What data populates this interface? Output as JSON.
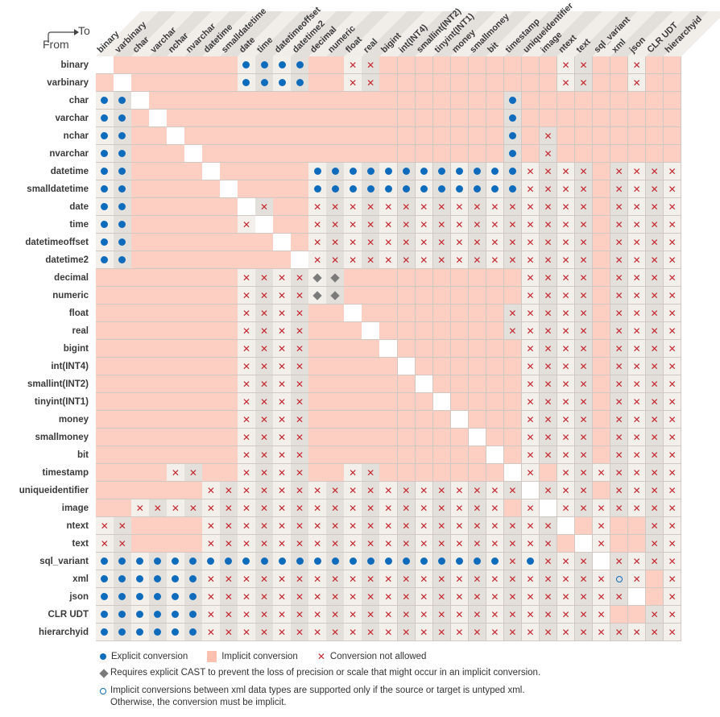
{
  "axis": {
    "from_label": "From",
    "to_label": "To"
  },
  "colors": {
    "explicit": "#0f6cbd",
    "implicit": "#fdcfc3",
    "not_allowed": "#c4262e",
    "diamond": "#7b7b7b",
    "cell_light": "#f3f0ec",
    "cell_dark": "#e3e0dc"
  },
  "cell_codes": {
    "-": "same-type",
    "I": "implicit",
    "E": "explicit",
    "X": "not-allowed",
    "D": "explicit-cast-required",
    "O": "xml-implicit-note"
  },
  "types": [
    "binary",
    "varbinary",
    "char",
    "varchar",
    "nchar",
    "nvarchar",
    "datetime",
    "smalldatetime",
    "date",
    "time",
    "datetimeoffset",
    "datetime2",
    "decimal",
    "numeric",
    "float",
    "real",
    "bigint",
    "int(INT4)",
    "smallint(INT2)",
    "tinyint(INT1)",
    "money",
    "smallmoney",
    "bit",
    "timestamp",
    "uniqueidentifier",
    "image",
    "ntext",
    "text",
    "sql_variant",
    "xml",
    "json",
    "CLR UDT",
    "hierarchyid"
  ],
  "matrix": [
    "-IIIIIIIEEEEIIXXIIIIIIIIIIXXIIXII",
    "I-IIIIIIEEEEIIXXIIIIIIIIIIXXIIXII",
    "EE-IIIIIIIIIIIIIIIIIIIIEIIIIIIIII",
    "EEI-IIIIIIIIIIIIIIIIIIIEIIIIIIIII",
    "EEII-IIIIIIIIIIIIIIIIIIEIXIIIIIII",
    "EEIII-IIIIIIIIIIIIIIIIIEIXIIIIIII",
    "EEIIII-IIIIIEEEEEEEEEEEEXXXXIXXXX",
    "EEIIIII-IIIIEEEEEEEEEEEEXXXXIXXXX",
    "EEIIIIII-XIIXXXXXXXXXXXXXXXXIXXXX",
    "EEIIIIIIX-IIXXXXXXXXXXXXXXXXIXXXX",
    "EEIIIIIIII-IXXXXXXXXXXXXXXXXIXXXX",
    "EEIIIIIIIII-XXXXXXXXXXXXXXXXIXXXX",
    "IIIIIIIIXXXXDDIIIIIIIIIIXXXXIXXXX",
    "IIIIIIIIXXXXDDIIIIIIIIIIXXXXIXXXX",
    "IIIIIIIIXXXXII-IIIIIIIIXXXXXIXXXX",
    "IIIIIIIIXXXXIII-IIIIIIIXXXXXIXXXX",
    "IIIIIIIIXXXXIIII-IIIIIIIXXXXIXXXX",
    "IIIIIIIIXXXXIIIII-IIIIIIXXXXIXXXX",
    "IIIIIIIIXXXXIIIIII-IIIIIXXXXIXXXX",
    "IIIIIIIIXXXXIIIIIII-IIIIXXXXIXXXX",
    "IIIIIIIIXXXXIIIIIIII-IIIXXXXIXXXX",
    "IIIIIIIIXXXXIIIIIIIII-IIXXXXIXXXX",
    "IIIIIIIIXXXXIIIIIIIIII-IXXXXIXXXX",
    "IIIIXXIIXXXXIIXXIIIIIII-XIXXXXXXX",
    "IIIIIIXXXXXXXXXXXXXXXXXX-XXXIXXXX",
    "IIXXXXXXXXXXXXXXXXXXXXXIX-XXXXXXX",
    "XXIIIIXXXXXXXXXXXXXXXXXXXX-IXIIXX",
    "XXIIIIXXXXXXXXXXXXXXXXXXXXI-XIIXX",
    "EEEEEEEEEEEEEEEEEEEEEEEXEXXX-XXXX",
    "EEEEEEXXXXXXXXXXXXXXXXXXXXXXXOXIX",
    "EEEEEEXXXXXXXXXXXXXXXXXXXXXXXX-IX",
    "EEEEEEXXXXXXXXXXXXXXXXXXXXXXXIIXX",
    "EEEEEEXXXXXXXXXXXXXXXXXXXXXXXXXXX"
  ],
  "legend": {
    "explicit": "Explicit conversion",
    "implicit": "Implicit conversion",
    "not_allowed": "Conversion not allowed",
    "diamond": "Requires explicit CAST to prevent the loss of precision or scale that might occur in an implicit conversion.",
    "circle_line1": "Implicit conversions between xml data types are supported only if the source or target is untyped xml.",
    "circle_line2": "Otherwise, the conversion must be implicit."
  }
}
